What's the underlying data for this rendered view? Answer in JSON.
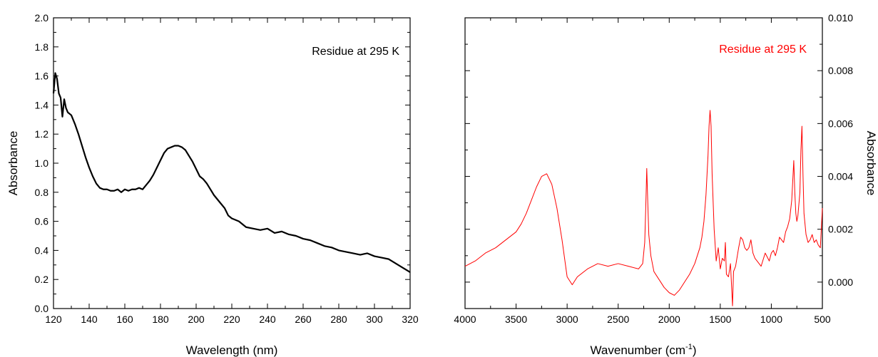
{
  "chart_data": [
    {
      "type": "line",
      "title": "",
      "annotation": "Residue at 295 K",
      "xlabel": "Wavelength (nm)",
      "ylabel": "Absorbance",
      "xlim": [
        120,
        320
      ],
      "ylim": [
        0.0,
        2.0
      ],
      "xticks": [
        "120",
        "140",
        "160",
        "180",
        "200",
        "220",
        "240",
        "260",
        "280",
        "300",
        "320"
      ],
      "yticks": [
        "0.0",
        "0.2",
        "0.4",
        "0.6",
        "0.8",
        "1.0",
        "1.2",
        "1.4",
        "1.6",
        "1.8",
        "2.0"
      ],
      "grid": false,
      "line_color": "#000000",
      "x": [
        120,
        121,
        122,
        123,
        124,
        125,
        126,
        127,
        128,
        130,
        132,
        134,
        136,
        138,
        140,
        142,
        144,
        146,
        148,
        150,
        152,
        154,
        156,
        158,
        160,
        162,
        164,
        166,
        168,
        170,
        172,
        174,
        176,
        178,
        180,
        182,
        184,
        186,
        188,
        190,
        192,
        194,
        196,
        198,
        200,
        202,
        204,
        206,
        208,
        210,
        212,
        214,
        216,
        218,
        220,
        224,
        228,
        232,
        236,
        240,
        244,
        248,
        252,
        256,
        260,
        264,
        268,
        272,
        276,
        280,
        284,
        288,
        292,
        296,
        300,
        304,
        308,
        312,
        316,
        320
      ],
      "y": [
        1.48,
        1.62,
        1.58,
        1.48,
        1.45,
        1.32,
        1.44,
        1.38,
        1.35,
        1.33,
        1.27,
        1.2,
        1.12,
        1.04,
        0.97,
        0.91,
        0.86,
        0.83,
        0.82,
        0.82,
        0.81,
        0.81,
        0.82,
        0.8,
        0.82,
        0.81,
        0.82,
        0.82,
        0.83,
        0.82,
        0.85,
        0.88,
        0.92,
        0.97,
        1.02,
        1.07,
        1.1,
        1.11,
        1.12,
        1.12,
        1.11,
        1.09,
        1.05,
        1.01,
        0.96,
        0.91,
        0.89,
        0.86,
        0.82,
        0.78,
        0.75,
        0.72,
        0.69,
        0.64,
        0.62,
        0.6,
        0.56,
        0.55,
        0.54,
        0.55,
        0.52,
        0.53,
        0.51,
        0.5,
        0.48,
        0.47,
        0.45,
        0.43,
        0.42,
        0.4,
        0.39,
        0.38,
        0.37,
        0.38,
        0.36,
        0.35,
        0.34,
        0.31,
        0.28,
        0.25
      ]
    },
    {
      "type": "line",
      "title": "",
      "annotation": "Residue at 295 K",
      "xlabel": "Wavenumber (cm",
      "xlabel_sup": "-1",
      "xlabel_end": ")",
      "ylabel": "Absorbance",
      "xlim": [
        4000,
        500
      ],
      "ylim": [
        -0.001,
        0.01
      ],
      "xticks": [
        "4000",
        "3500",
        "3000",
        "2500",
        "2000",
        "1500",
        "1000",
        "500"
      ],
      "yticks": [
        "0.000",
        "0.002",
        "0.004",
        "0.006",
        "0.008",
        "0.010"
      ],
      "grid": false,
      "line_color": "#ff0000",
      "x": [
        4000,
        3900,
        3800,
        3700,
        3600,
        3500,
        3450,
        3400,
        3350,
        3300,
        3250,
        3200,
        3150,
        3100,
        3050,
        3000,
        2950,
        2900,
        2800,
        2700,
        2600,
        2500,
        2400,
        2300,
        2260,
        2240,
        2230,
        2220,
        2210,
        2200,
        2180,
        2150,
        2100,
        2050,
        2000,
        1950,
        1900,
        1850,
        1800,
        1750,
        1700,
        1680,
        1660,
        1640,
        1620,
        1610,
        1600,
        1590,
        1580,
        1560,
        1540,
        1520,
        1500,
        1480,
        1460,
        1450,
        1440,
        1420,
        1400,
        1380,
        1370,
        1350,
        1320,
        1300,
        1280,
        1260,
        1240,
        1220,
        1200,
        1180,
        1160,
        1140,
        1100,
        1060,
        1020,
        1000,
        980,
        960,
        940,
        920,
        900,
        880,
        860,
        840,
        820,
        800,
        780,
        770,
        760,
        750,
        740,
        720,
        710,
        700,
        690,
        680,
        660,
        640,
        620,
        600,
        580,
        560,
        540,
        520,
        500
      ],
      "y": [
        0.0006,
        0.0008,
        0.0011,
        0.0013,
        0.0016,
        0.0019,
        0.0022,
        0.0026,
        0.0031,
        0.0036,
        0.004,
        0.0041,
        0.0037,
        0.0028,
        0.0016,
        0.0002,
        -0.0001,
        0.0002,
        0.0005,
        0.0007,
        0.0006,
        0.0007,
        0.0006,
        0.0005,
        0.0007,
        0.0015,
        0.0028,
        0.0043,
        0.003,
        0.0018,
        0.001,
        0.0004,
        0.0001,
        -0.0002,
        -0.0004,
        -0.0005,
        -0.0003,
        0.0,
        0.0003,
        0.0007,
        0.0013,
        0.0017,
        0.0023,
        0.0033,
        0.0048,
        0.0059,
        0.0065,
        0.0059,
        0.0041,
        0.002,
        0.0008,
        0.0013,
        0.0005,
        0.0009,
        0.0008,
        0.0015,
        0.0003,
        0.0002,
        0.0007,
        -0.0009,
        0.0004,
        0.0006,
        0.0013,
        0.0017,
        0.0016,
        0.0013,
        0.0012,
        0.0013,
        0.0016,
        0.0011,
        0.0009,
        0.0008,
        0.0006,
        0.0011,
        0.0008,
        0.0011,
        0.0012,
        0.001,
        0.0013,
        0.0017,
        0.0016,
        0.0015,
        0.0019,
        0.0021,
        0.0024,
        0.0031,
        0.0046,
        0.0034,
        0.0026,
        0.0023,
        0.0025,
        0.0034,
        0.005,
        0.0059,
        0.0041,
        0.0026,
        0.0018,
        0.0015,
        0.0016,
        0.0018,
        0.0015,
        0.0016,
        0.0014,
        0.0013,
        0.0028
      ]
    }
  ]
}
